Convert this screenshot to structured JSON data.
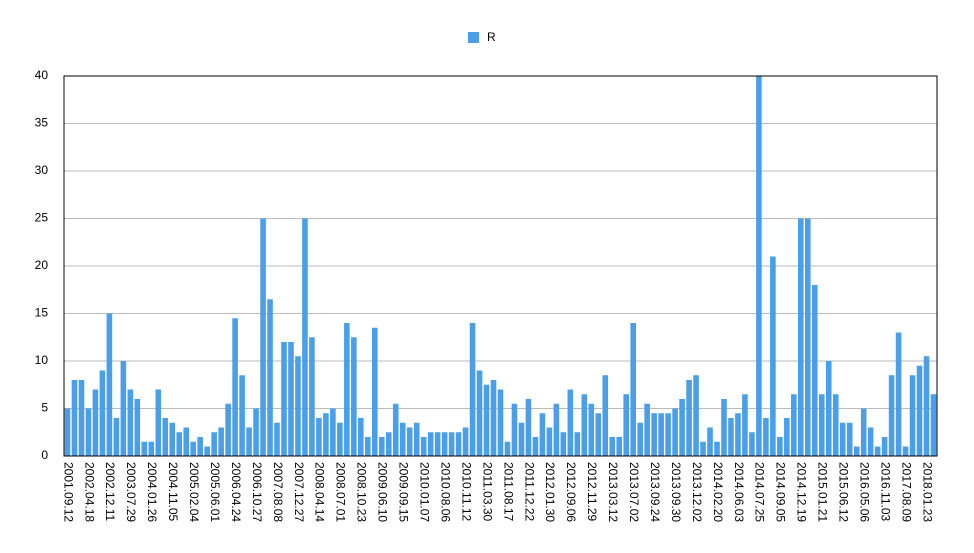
{
  "chart_data": {
    "type": "bar",
    "series": [
      {
        "name": "R",
        "color": "#4a9fe8",
        "values": [
          5,
          8,
          8,
          5,
          7,
          9,
          15,
          4,
          10,
          7,
          6,
          1.5,
          1.5,
          7,
          4,
          3.5,
          2.5,
          3,
          1.5,
          2,
          1,
          2.5,
          3,
          5.5,
          14.5,
          8.5,
          3,
          5,
          25,
          16.5,
          3.5,
          12,
          12,
          10.5,
          25,
          12.5,
          4,
          4.5,
          5,
          3.5,
          14,
          12.5,
          4,
          2,
          13.5,
          2,
          2.5,
          5.5,
          3.5,
          3,
          3.5,
          2,
          2.5,
          2.5,
          2.5,
          2.5,
          2.5,
          3,
          14,
          9,
          7.5,
          8,
          7,
          1.5,
          5.5,
          3.5,
          6,
          2,
          4.5,
          3,
          5.5,
          2.5,
          7,
          2.5,
          6.5,
          5.5,
          4.5,
          8.5,
          2,
          2,
          6.5,
          14,
          3.5,
          5.5,
          4.5,
          4.5,
          4.5,
          5,
          6,
          8,
          8.5,
          1.5,
          3,
          1.5,
          6,
          4,
          4.5,
          6.5,
          2.5,
          40,
          4,
          21,
          2,
          4,
          6.5,
          25,
          25,
          18,
          6.5,
          10,
          6.5,
          3.5,
          3.5,
          1,
          5,
          3,
          1,
          2,
          8.5,
          13,
          1,
          8.5,
          9.5,
          10.5,
          6.5
        ]
      }
    ],
    "categories": [
      "2001.09.12",
      null,
      null,
      "2002.04.18",
      null,
      null,
      "2002.12.11",
      null,
      null,
      "2003.07.29",
      null,
      null,
      "2004.01.26",
      null,
      null,
      "2004.11.05",
      null,
      null,
      "2005.02.04",
      null,
      null,
      "2005.06.01",
      null,
      null,
      "2006.04.24",
      null,
      null,
      "2006.10.27",
      null,
      null,
      "2007.08.08",
      null,
      null,
      "2007.12.27",
      null,
      null,
      "2008.04.14",
      null,
      null,
      "2008.07.01",
      null,
      null,
      "2008.10.23",
      null,
      null,
      "2009.06.10",
      null,
      null,
      "2009.09.15",
      null,
      null,
      "2010.01.07",
      null,
      null,
      "2010.08.06",
      null,
      null,
      "2010.11.12",
      null,
      null,
      "2011.03.30",
      null,
      null,
      "2011.08.17",
      null,
      null,
      "2011.12.22",
      null,
      null,
      "2012.01.30",
      null,
      null,
      "2012.09.06",
      null,
      null,
      "2012.11.29",
      null,
      null,
      "2013.03.12",
      null,
      null,
      "2013.07.02",
      null,
      null,
      "2013.09.24",
      null,
      null,
      "2013.09.30",
      null,
      null,
      "2013.12.02",
      null,
      null,
      "2014.02.20",
      null,
      null,
      "2014.06.03",
      null,
      null,
      "2014.07.25",
      null,
      null,
      "2014.09.05",
      null,
      null,
      "2014.12.19",
      null,
      null,
      "2015.01.21",
      null,
      null,
      "2015.06.12",
      null,
      null,
      "2016.05.06",
      null,
      null,
      "2016.11.03",
      null,
      null,
      "2017.08.09",
      null,
      null,
      "2018.01.23",
      null
    ],
    "ylim": [
      0,
      40
    ],
    "yticks": [
      0,
      5,
      10,
      15,
      20,
      25,
      30,
      35,
      40
    ],
    "grid": true,
    "legend": "top"
  }
}
